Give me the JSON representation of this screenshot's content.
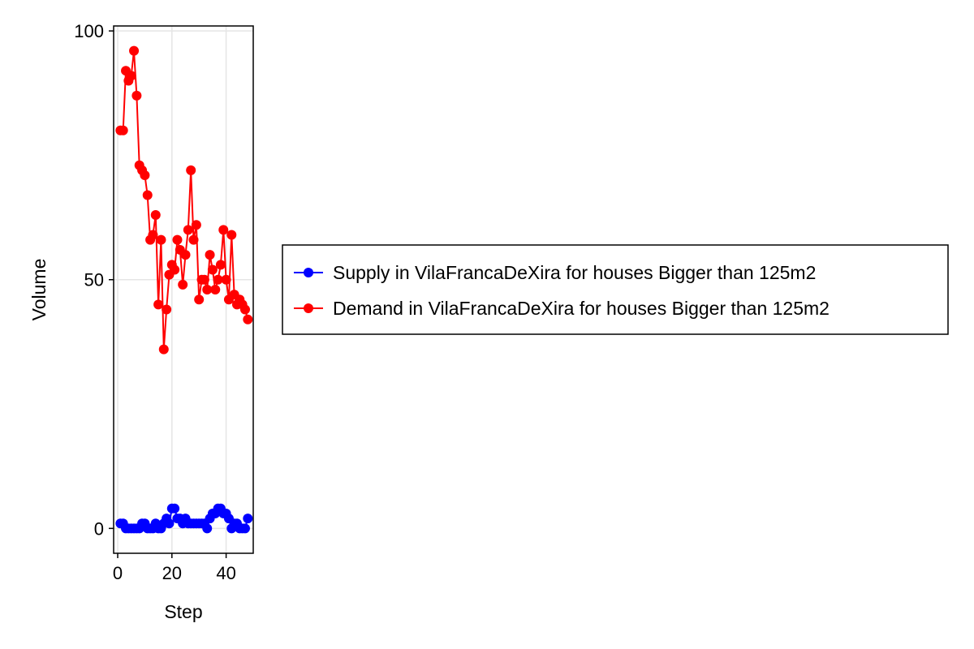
{
  "chart_data": {
    "type": "line",
    "title": "",
    "xlabel": "Step",
    "ylabel": "Volume",
    "xlim": [
      -1.5,
      50
    ],
    "ylim": [
      -5,
      101
    ],
    "xticks": [
      0,
      20,
      40
    ],
    "yticks": [
      0,
      50,
      100
    ],
    "grid": true,
    "legend_position": "right",
    "series": [
      {
        "name": "Supply in VilaFrancaDeXira for houses Bigger than 125m2",
        "color": "#0000ff",
        "x": [
          1,
          2,
          3,
          4,
          5,
          6,
          7,
          8,
          9,
          10,
          11,
          12,
          13,
          14,
          15,
          16,
          17,
          18,
          19,
          20,
          21,
          22,
          23,
          24,
          25,
          26,
          27,
          28,
          29,
          30,
          31,
          32,
          33,
          34,
          35,
          36,
          37,
          38,
          39,
          40,
          41,
          42,
          43,
          44,
          45,
          46,
          47,
          48
        ],
        "y": [
          1,
          1,
          0,
          0,
          0,
          0,
          0,
          0,
          1,
          1,
          0,
          0,
          0,
          1,
          0,
          0,
          1,
          2,
          1,
          4,
          4,
          2,
          2,
          1,
          2,
          1,
          1,
          1,
          1,
          1,
          1,
          1,
          0,
          2,
          3,
          3,
          4,
          4,
          3,
          3,
          2,
          0,
          1,
          1,
          0,
          0,
          0,
          2
        ]
      },
      {
        "name": "Demand in VilaFrancaDeXira for houses Bigger than 125m2",
        "color": "#ff0000",
        "x": [
          1,
          2,
          3,
          4,
          5,
          6,
          7,
          8,
          9,
          10,
          11,
          12,
          13,
          14,
          15,
          16,
          17,
          18,
          19,
          20,
          21,
          22,
          23,
          24,
          25,
          26,
          27,
          28,
          29,
          30,
          31,
          32,
          33,
          34,
          35,
          36,
          37,
          38,
          39,
          40,
          41,
          42,
          43,
          44,
          45,
          46,
          47,
          48
        ],
        "y": [
          80,
          80,
          92,
          90,
          91,
          96,
          87,
          73,
          72,
          71,
          67,
          58,
          59,
          63,
          45,
          58,
          36,
          44,
          51,
          53,
          52,
          58,
          56,
          49,
          55,
          60,
          72,
          58,
          61,
          46,
          50,
          50,
          48,
          55,
          52,
          48,
          50,
          53,
          60,
          50,
          46,
          59,
          47,
          45,
          46,
          45,
          44,
          42
        ]
      }
    ]
  }
}
